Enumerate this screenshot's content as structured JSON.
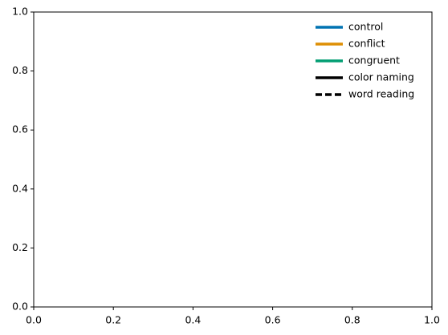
{
  "chart_data": {
    "type": "line",
    "series": [
      {
        "name": "control",
        "color": "#0173b2",
        "linestyle": "solid",
        "values": []
      },
      {
        "name": "conflict",
        "color": "#de8f05",
        "linestyle": "solid",
        "values": []
      },
      {
        "name": "congruent",
        "color": "#029e73",
        "linestyle": "solid",
        "values": []
      },
      {
        "name": "color naming",
        "color": "#000000",
        "linestyle": "solid",
        "values": []
      },
      {
        "name": "word reading",
        "color": "#000000",
        "linestyle": "dashed",
        "values": []
      }
    ],
    "xlim": [
      0,
      1
    ],
    "ylim": [
      0,
      1
    ],
    "xticks": [
      {
        "value": 0,
        "label": "0.0"
      },
      0.2,
      0.4,
      0.6,
      0.8,
      {
        "value": 1,
        "label": "1.0"
      }
    ],
    "yticks": [
      {
        "value": 0,
        "label": "0.0"
      },
      0.2,
      0.4,
      0.6,
      0.8,
      {
        "value": 1,
        "label": "1.0"
      }
    ],
    "grid": false,
    "legend": "upper right"
  }
}
